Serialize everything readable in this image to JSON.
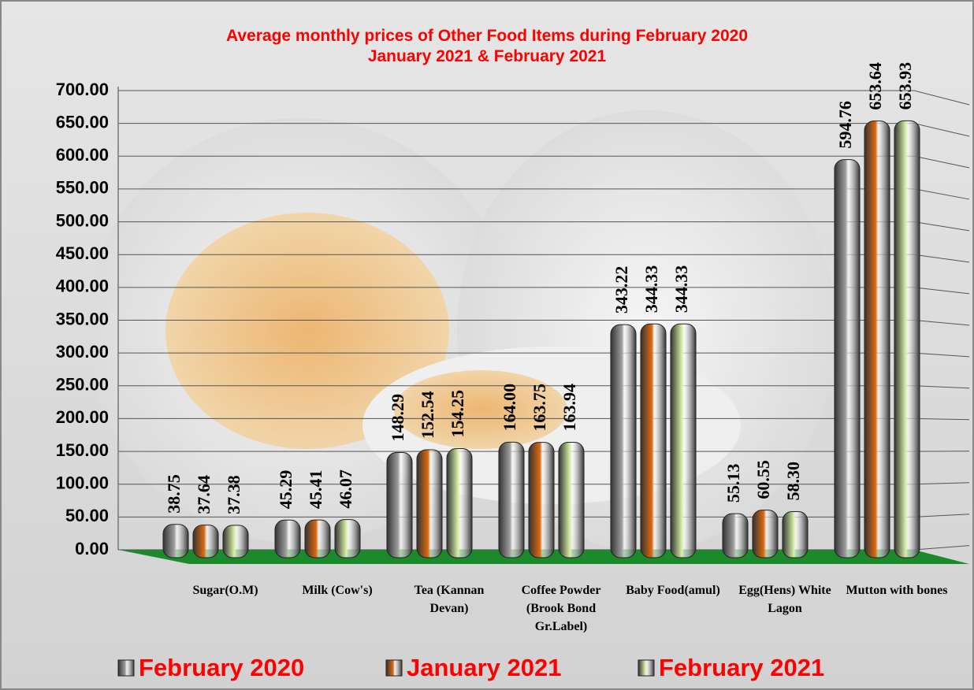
{
  "chart_data": {
    "type": "bar",
    "title": "Average monthly prices of Other Food Items during  February  2020",
    "subtitle": "January 2021  &  February 2021",
    "categories": [
      "Sugar(O.M)",
      "Milk (Cow's)",
      "Tea (Kannan Devan)",
      "Coffee Powder (Brook Bond Gr.Label)",
      "Baby Food(amul)",
      "Egg(Hens) White Lagon",
      "Mutton with bones"
    ],
    "series": [
      {
        "name": "February 2020",
        "color": "#a0a0a0",
        "values": [
          38.75,
          45.29,
          148.29,
          164.0,
          343.22,
          55.13,
          594.76
        ],
        "value_labels": [
          "38.75",
          "45.29",
          "148.29",
          "164.00",
          "343.22",
          "55.13",
          "594.76"
        ]
      },
      {
        "name": "January 2021",
        "color": "#e06a10",
        "values": [
          37.64,
          45.41,
          152.54,
          163.75,
          344.33,
          60.55,
          653.64
        ],
        "value_labels": [
          "37.64",
          "45.41",
          "152.54",
          "163.75",
          "344.33",
          "60.55",
          "653.64"
        ]
      },
      {
        "name": "February 2021",
        "color": "#d8f0a8",
        "values": [
          37.38,
          46.07,
          154.25,
          163.94,
          344.33,
          58.3,
          653.93
        ],
        "value_labels": [
          "37.38",
          "46.07",
          "154.25",
          "163.94",
          "344.33",
          "58.30",
          "653.93"
        ]
      }
    ],
    "ylim": [
      0,
      700
    ],
    "yticks": [
      {
        "value": 0,
        "label": "0.00"
      },
      {
        "value": 50,
        "label": "50.00"
      },
      {
        "value": 100,
        "label": "100.00"
      },
      {
        "value": 150,
        "label": "150.00"
      },
      {
        "value": 200,
        "label": "200.00"
      },
      {
        "value": 250,
        "label": "250.00"
      },
      {
        "value": 300,
        "label": "300.00"
      },
      {
        "value": 350,
        "label": "350.00"
      },
      {
        "value": 400,
        "label": "400.00"
      },
      {
        "value": 450,
        "label": "450.00"
      },
      {
        "value": 500,
        "label": "500.00"
      },
      {
        "value": 550,
        "label": "550.00"
      },
      {
        "value": 600,
        "label": "600.00"
      },
      {
        "value": 650,
        "label": "650.00"
      },
      {
        "value": 700,
        "label": "700.00"
      }
    ],
    "grid": true
  }
}
